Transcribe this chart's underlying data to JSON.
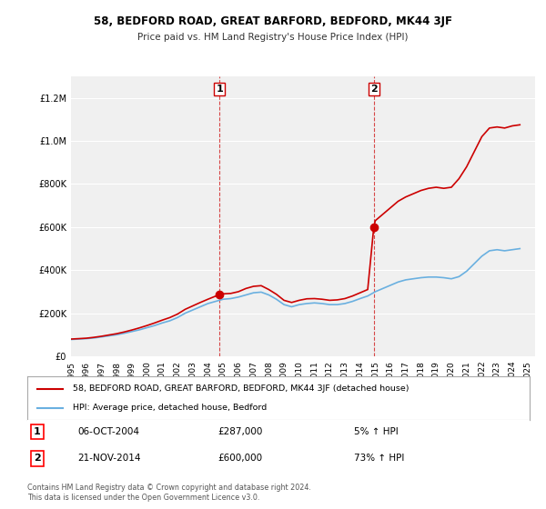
{
  "title1": "58, BEDFORD ROAD, GREAT BARFORD, BEDFORD, MK44 3JF",
  "title2": "Price paid vs. HM Land Registry's House Price Index (HPI)",
  "legend_line1": "58, BEDFORD ROAD, GREAT BARFORD, BEDFORD, MK44 3JF (detached house)",
  "legend_line2": "HPI: Average price, detached house, Bedford",
  "annotation1_label": "1",
  "annotation1_date": "06-OCT-2004",
  "annotation1_price": "£287,000",
  "annotation1_hpi": "5% ↑ HPI",
  "annotation2_label": "2",
  "annotation2_date": "21-NOV-2014",
  "annotation2_price": "£600,000",
  "annotation2_hpi": "73% ↑ HPI",
  "copyright": "Contains HM Land Registry data © Crown copyright and database right 2024.\nThis data is licensed under the Open Government Licence v3.0.",
  "hpi_color": "#6ab0e0",
  "price_color": "#cc0000",
  "vline_color": "#cc0000",
  "background_chart": "#f0f0f0",
  "background_fig": "#ffffff",
  "ylim": [
    0,
    1300000
  ],
  "yticks": [
    0,
    200000,
    400000,
    600000,
    800000,
    1000000,
    1200000
  ],
  "xlim_start": 1995.0,
  "xlim_end": 2025.5,
  "sale1_x": 2004.77,
  "sale1_y": 287000,
  "sale2_x": 2014.9,
  "sale2_y": 600000,
  "hpi_x": [
    1995.0,
    1995.5,
    1996.0,
    1996.5,
    1997.0,
    1997.5,
    1998.0,
    1998.5,
    1999.0,
    1999.5,
    2000.0,
    2000.5,
    2001.0,
    2001.5,
    2002.0,
    2002.5,
    2003.0,
    2003.5,
    2004.0,
    2004.5,
    2005.0,
    2005.5,
    2006.0,
    2006.5,
    2007.0,
    2007.5,
    2008.0,
    2008.5,
    2009.0,
    2009.5,
    2010.0,
    2010.5,
    2011.0,
    2011.5,
    2012.0,
    2012.5,
    2013.0,
    2013.5,
    2014.0,
    2014.5,
    2015.0,
    2015.5,
    2016.0,
    2016.5,
    2017.0,
    2017.5,
    2018.0,
    2018.5,
    2019.0,
    2019.5,
    2020.0,
    2020.5,
    2021.0,
    2021.5,
    2022.0,
    2022.5,
    2023.0,
    2023.5,
    2024.0,
    2024.5
  ],
  "hpi_y": [
    78000,
    80000,
    82000,
    85000,
    90000,
    95000,
    100000,
    107000,
    115000,
    123000,
    133000,
    143000,
    155000,
    165000,
    180000,
    200000,
    215000,
    230000,
    245000,
    255000,
    265000,
    268000,
    275000,
    285000,
    295000,
    298000,
    285000,
    265000,
    240000,
    230000,
    240000,
    245000,
    248000,
    245000,
    240000,
    240000,
    245000,
    255000,
    268000,
    280000,
    300000,
    315000,
    330000,
    345000,
    355000,
    360000,
    365000,
    368000,
    368000,
    365000,
    360000,
    370000,
    395000,
    430000,
    465000,
    490000,
    495000,
    490000,
    495000,
    500000
  ],
  "price_x": [
    1995.0,
    1995.5,
    1996.0,
    1996.5,
    1997.0,
    1997.5,
    1998.0,
    1998.5,
    1999.0,
    1999.5,
    2000.0,
    2000.5,
    2001.0,
    2001.5,
    2002.0,
    2002.5,
    2003.0,
    2003.5,
    2004.0,
    2004.77,
    2005.0,
    2005.5,
    2006.0,
    2006.5,
    2007.0,
    2007.5,
    2008.0,
    2008.5,
    2009.0,
    2009.5,
    2010.0,
    2010.5,
    2011.0,
    2011.5,
    2012.0,
    2012.5,
    2013.0,
    2013.5,
    2014.0,
    2014.5,
    2014.9,
    2015.0,
    2015.5,
    2016.0,
    2016.5,
    2017.0,
    2017.5,
    2018.0,
    2018.5,
    2019.0,
    2019.5,
    2020.0,
    2020.5,
    2021.0,
    2021.5,
    2022.0,
    2022.5,
    2023.0,
    2023.5,
    2024.0,
    2024.5
  ],
  "price_y": [
    80000,
    82000,
    84000,
    88000,
    93000,
    99000,
    105000,
    113000,
    122000,
    132000,
    143000,
    155000,
    168000,
    180000,
    196000,
    218000,
    234000,
    250000,
    265000,
    287000,
    290000,
    292000,
    300000,
    315000,
    325000,
    328000,
    310000,
    288000,
    260000,
    250000,
    260000,
    267000,
    268000,
    265000,
    260000,
    262000,
    268000,
    280000,
    295000,
    310000,
    600000,
    630000,
    660000,
    690000,
    720000,
    740000,
    755000,
    770000,
    780000,
    785000,
    780000,
    785000,
    825000,
    880000,
    950000,
    1020000,
    1060000,
    1065000,
    1060000,
    1070000,
    1075000
  ]
}
